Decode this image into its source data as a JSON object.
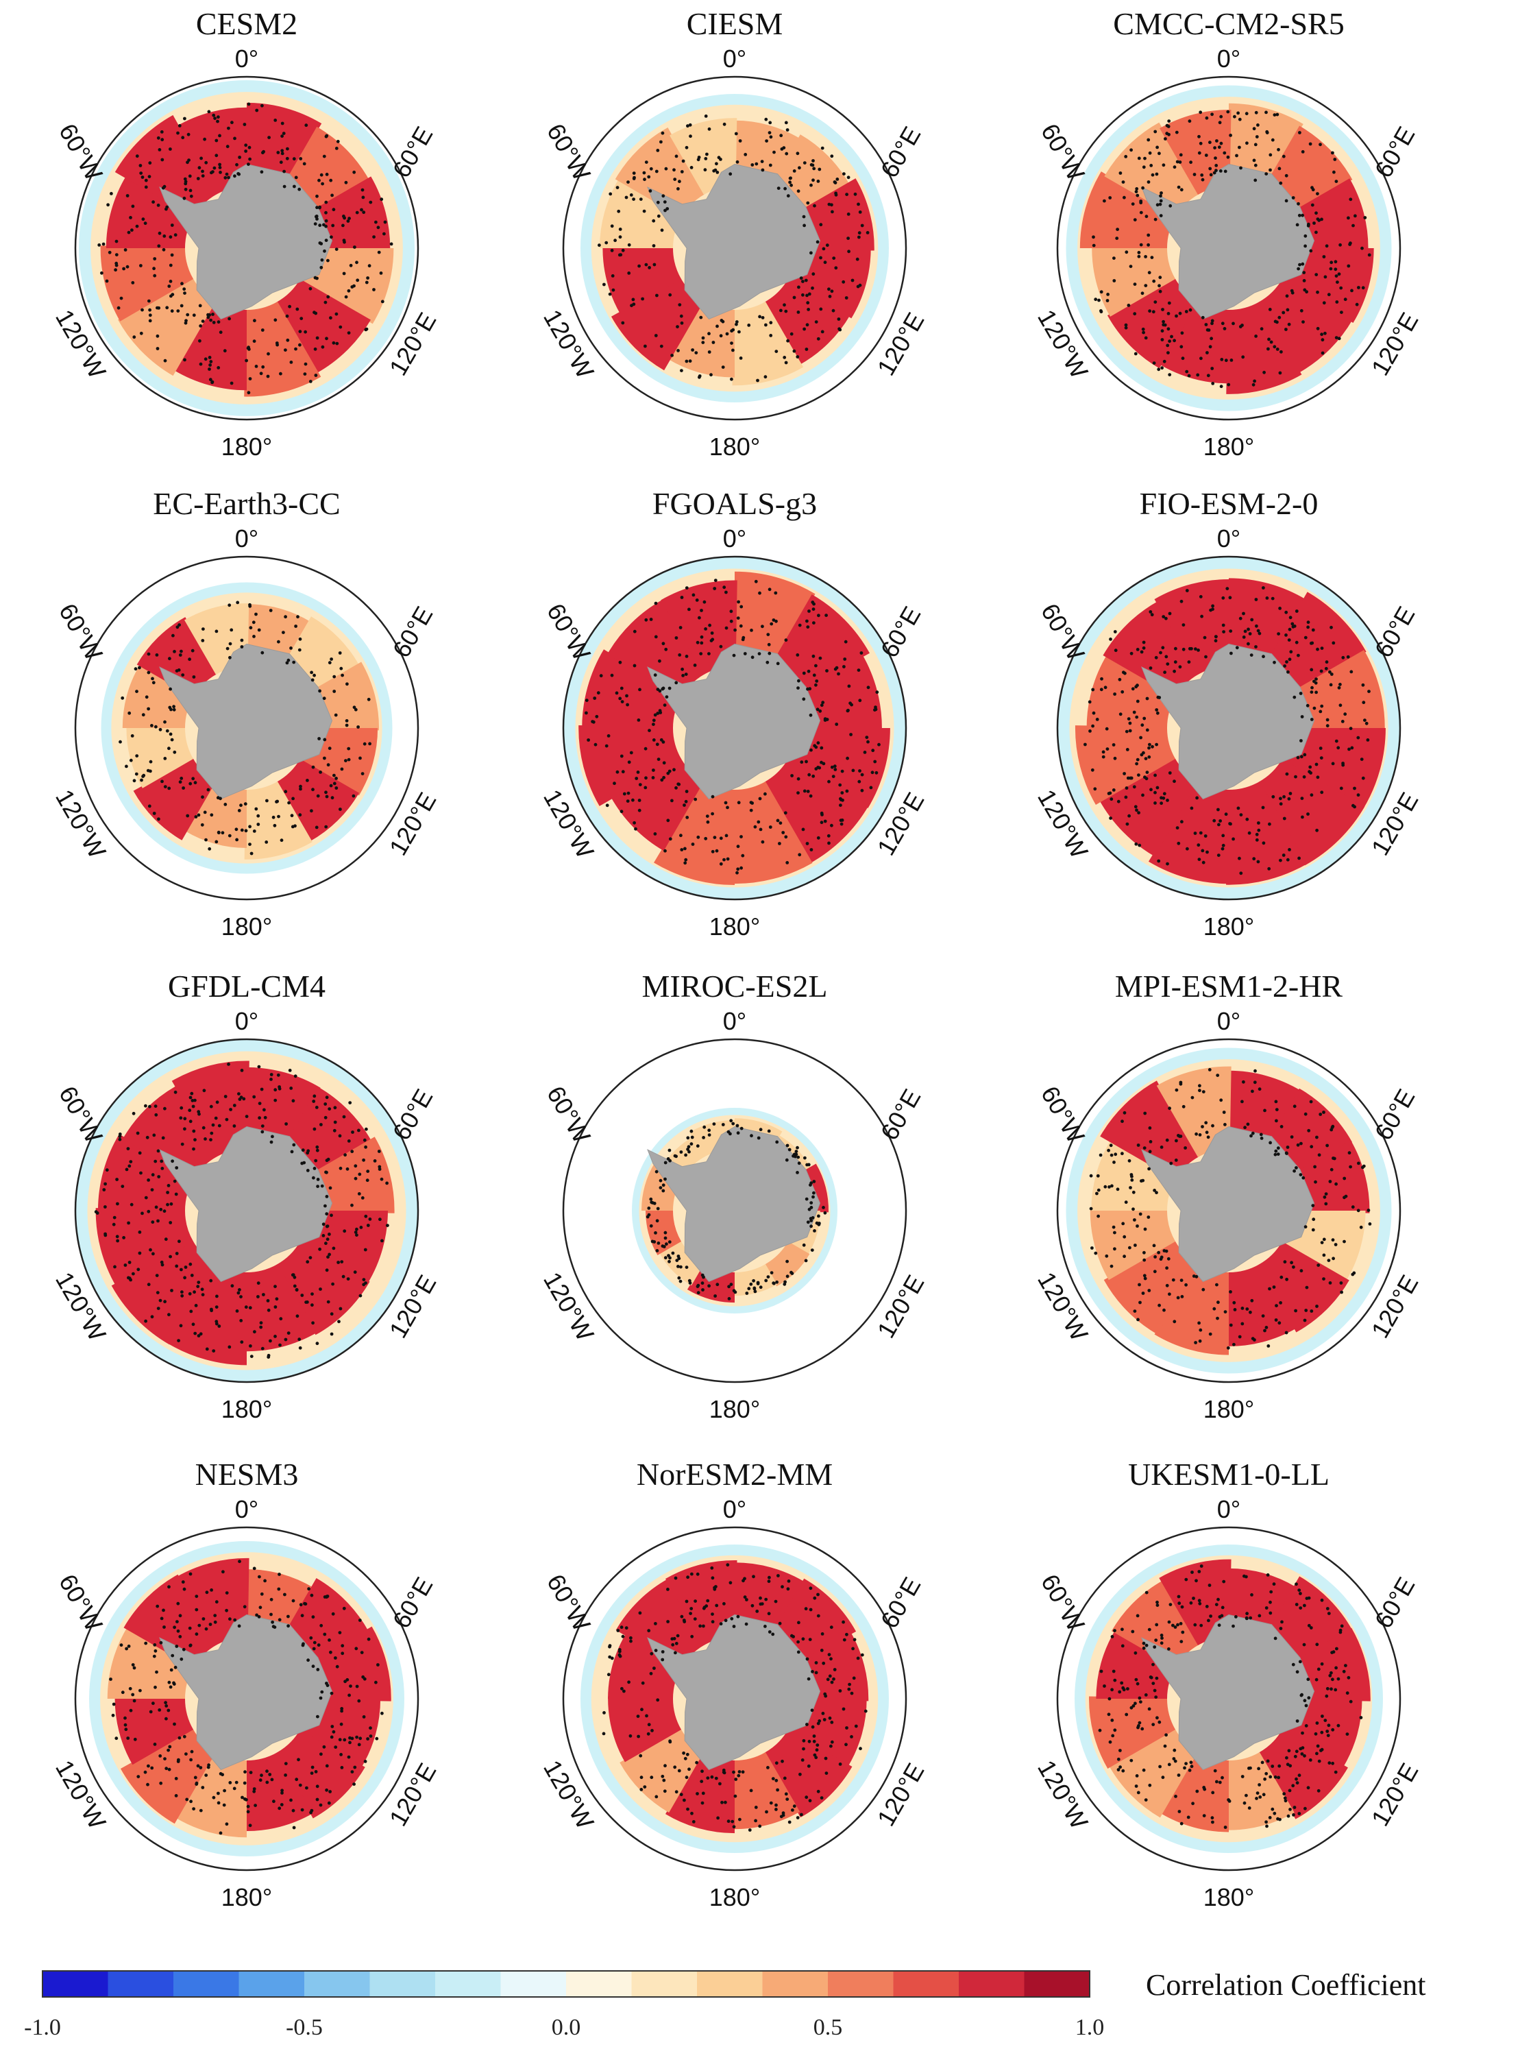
{
  "figure": {
    "panels": [
      {
        "title": "CESM2"
      },
      {
        "title": "CIESM"
      },
      {
        "title": "CMCC-CM2-SR5"
      },
      {
        "title": "EC-Earth3-CC"
      },
      {
        "title": "FGOALS-g3"
      },
      {
        "title": "FIO-ESM-2-0"
      },
      {
        "title": "GFDL-CM4"
      },
      {
        "title": "MIROC-ES2L"
      },
      {
        "title": "MPI-ESM1-2-HR"
      },
      {
        "title": "NESM3"
      },
      {
        "title": "NorESM2-MM"
      },
      {
        "title": "UKESM1-0-LL"
      }
    ],
    "longitude_labels": [
      "0°",
      "60°E",
      "120°E",
      "180°",
      "120°W",
      "60°W"
    ],
    "colorbar": {
      "title": "Correlation Coefficient",
      "range": [
        -1.0,
        1.0
      ],
      "ticks": [
        "-1.0",
        "-0.5",
        "0.0",
        "0.5",
        "1.0"
      ],
      "colors": [
        "#1a1ad0",
        "#2a4fe0",
        "#3a78e6",
        "#5aa2ea",
        "#86c6ee",
        "#aee0f2",
        "#c9eef6",
        "#e9f8fb",
        "#fdf5e0",
        "#fde6bc",
        "#fbcf96",
        "#f7aa76",
        "#f07e5c",
        "#e45046",
        "#d0283a",
        "#a8112a"
      ]
    }
  },
  "chart_data": {
    "type": "map",
    "projection": "south polar stereographic",
    "variable": "Correlation Coefficient",
    "value_range": [
      -1.0,
      1.0
    ],
    "panels": [
      "CESM2",
      "CIESM",
      "CMCC-CM2-SR5",
      "EC-Earth3-CC",
      "FGOALS-g3",
      "FIO-ESM-2-0",
      "GFDL-CM4",
      "MIROC-ES2L",
      "MPI-ESM1-2-HR",
      "NESM3",
      "NorESM2-MM",
      "UKESM1-0-LL"
    ]
  }
}
